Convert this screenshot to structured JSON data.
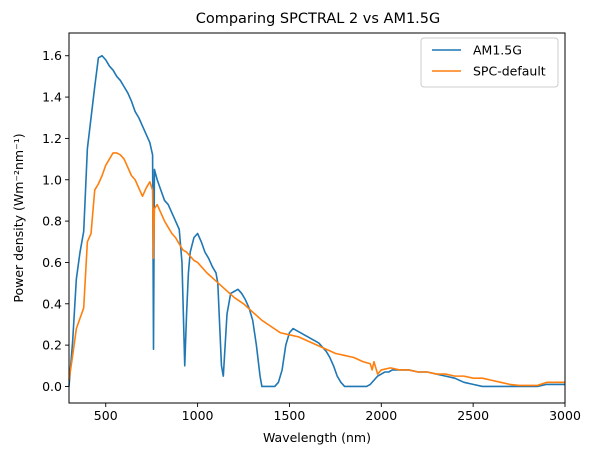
{
  "chart_data": {
    "type": "line",
    "title": "Comparing SPCTRAL 2 vs AM1.5G",
    "xlabel": "Wavelength (nm)",
    "ylabel": "Power density (Wm⁻²nm⁻¹)",
    "xlim": [
      300,
      3000
    ],
    "ylim": [
      -0.08,
      1.71
    ],
    "xticks": [
      500,
      1000,
      1500,
      2000,
      2500,
      3000
    ],
    "yticks": [
      0.0,
      0.2,
      0.4,
      0.6,
      0.8,
      1.0,
      1.2,
      1.4,
      1.6
    ],
    "grid": false,
    "legend_position": "top-right",
    "series": [
      {
        "name": "AM1.5G",
        "color": "#1f77b4",
        "x": [
          300,
          320,
          340,
          360,
          380,
          400,
          420,
          440,
          460,
          480,
          500,
          520,
          540,
          560,
          580,
          600,
          620,
          640,
          660,
          680,
          700,
          720,
          740,
          755,
          760,
          765,
          780,
          800,
          820,
          840,
          860,
          880,
          900,
          915,
          930,
          940,
          950,
          960,
          980,
          1000,
          1020,
          1040,
          1060,
          1080,
          1100,
          1110,
          1120,
          1130,
          1140,
          1150,
          1160,
          1180,
          1200,
          1220,
          1240,
          1260,
          1280,
          1300,
          1320,
          1340,
          1350,
          1360,
          1380,
          1400,
          1420,
          1440,
          1460,
          1480,
          1500,
          1520,
          1540,
          1560,
          1580,
          1600,
          1620,
          1640,
          1660,
          1680,
          1700,
          1720,
          1740,
          1760,
          1780,
          1800,
          1820,
          1840,
          1860,
          1880,
          1900,
          1920,
          1940,
          1960,
          1980,
          2000,
          2020,
          2040,
          2060,
          2080,
          2100,
          2150,
          2200,
          2250,
          2300,
          2350,
          2400,
          2450,
          2500,
          2550,
          2600,
          2650,
          2700,
          2750,
          2800,
          2850,
          2900,
          2950,
          3000
        ],
        "y": [
          0.0,
          0.22,
          0.52,
          0.65,
          0.75,
          1.15,
          1.3,
          1.45,
          1.59,
          1.6,
          1.58,
          1.55,
          1.53,
          1.5,
          1.48,
          1.45,
          1.42,
          1.38,
          1.33,
          1.3,
          1.26,
          1.22,
          1.18,
          1.12,
          0.18,
          1.05,
          1.0,
          0.95,
          0.9,
          0.88,
          0.84,
          0.8,
          0.76,
          0.6,
          0.1,
          0.35,
          0.55,
          0.65,
          0.72,
          0.74,
          0.7,
          0.65,
          0.62,
          0.58,
          0.55,
          0.5,
          0.3,
          0.1,
          0.05,
          0.2,
          0.35,
          0.45,
          0.46,
          0.47,
          0.45,
          0.42,
          0.38,
          0.32,
          0.2,
          0.05,
          0.0,
          0.0,
          0.0,
          0.0,
          0.0,
          0.02,
          0.08,
          0.2,
          0.26,
          0.28,
          0.27,
          0.26,
          0.25,
          0.24,
          0.23,
          0.22,
          0.21,
          0.19,
          0.17,
          0.14,
          0.1,
          0.05,
          0.02,
          0.0,
          0.0,
          0.0,
          0.0,
          0.0,
          0.0,
          0.0,
          0.01,
          0.03,
          0.05,
          0.06,
          0.07,
          0.07,
          0.08,
          0.08,
          0.08,
          0.08,
          0.07,
          0.07,
          0.06,
          0.05,
          0.04,
          0.02,
          0.01,
          0.0,
          0.0,
          0.0,
          0.0,
          0.0,
          0.0,
          0.0,
          0.01,
          0.01,
          0.01
        ]
      },
      {
        "name": "SPC-default",
        "color": "#ff7f0e",
        "x": [
          300,
          320,
          340,
          360,
          380,
          400,
          420,
          440,
          460,
          480,
          500,
          520,
          540,
          560,
          580,
          600,
          620,
          640,
          660,
          680,
          700,
          720,
          740,
          755,
          760,
          765,
          780,
          800,
          820,
          840,
          860,
          880,
          900,
          920,
          940,
          960,
          980,
          1000,
          1050,
          1100,
          1150,
          1200,
          1250,
          1300,
          1350,
          1400,
          1450,
          1500,
          1550,
          1600,
          1650,
          1700,
          1750,
          1800,
          1850,
          1900,
          1940,
          1950,
          1960,
          1980,
          2000,
          2050,
          2100,
          2150,
          2200,
          2250,
          2300,
          2350,
          2400,
          2450,
          2500,
          2550,
          2600,
          2650,
          2700,
          2750,
          2800,
          2850,
          2900,
          2950,
          3000
        ],
        "y": [
          0.03,
          0.15,
          0.28,
          0.33,
          0.38,
          0.7,
          0.74,
          0.95,
          0.98,
          1.02,
          1.07,
          1.1,
          1.13,
          1.13,
          1.12,
          1.1,
          1.06,
          1.02,
          1.0,
          0.96,
          0.92,
          0.96,
          0.99,
          0.95,
          0.62,
          0.86,
          0.88,
          0.84,
          0.8,
          0.77,
          0.74,
          0.72,
          0.69,
          0.66,
          0.65,
          0.63,
          0.61,
          0.6,
          0.55,
          0.51,
          0.47,
          0.43,
          0.4,
          0.36,
          0.32,
          0.29,
          0.26,
          0.25,
          0.24,
          0.22,
          0.2,
          0.18,
          0.16,
          0.15,
          0.14,
          0.12,
          0.11,
          0.08,
          0.12,
          0.06,
          0.08,
          0.09,
          0.08,
          0.08,
          0.07,
          0.07,
          0.06,
          0.06,
          0.05,
          0.05,
          0.04,
          0.04,
          0.03,
          0.02,
          0.01,
          0.005,
          0.005,
          0.005,
          0.02,
          0.02,
          0.02
        ]
      }
    ]
  }
}
